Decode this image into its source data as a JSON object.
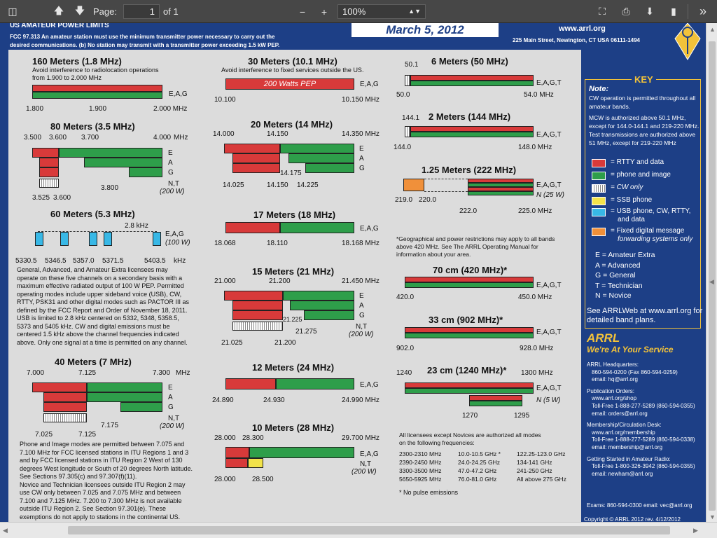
{
  "toolbar": {
    "page_label": "Page:",
    "page_value": "1",
    "page_total": "of 1",
    "zoom_value": "100%"
  },
  "header": {
    "title": "US AMATEUR POWER LIMITS",
    "fcc_line1": "FCC 97.313   An amateur station must use the minimum transmitter power necessary to carry out the",
    "fcc_line2": "desired communications.  (b)  No station may transmit with a transmitter power exceeding 1.5 kW PEP.",
    "date": "March 5, 2012",
    "site": "www.arrl.org",
    "address": "225 Main Street, Newington, CT  USA  06111-1494",
    "logo_text": "ARRL"
  },
  "bands": {
    "b160": {
      "title": "160 Meters (1.8 MHz)",
      "note1": "Avoid interference to radiolocation operations",
      "note2": "from 1.900 to 2.000 MHz",
      "lic": "E,A,G",
      "t1": "1.800",
      "t2": "1.900",
      "t3": "2.000 MHz"
    },
    "b80": {
      "title": "80 Meters (3.5 MHz)",
      "t1": "3.500",
      "t2": "3.600",
      "t3": "3.700",
      "t4": "4.000",
      "unit": "MHz",
      "e": "E",
      "a": "A",
      "g": "G",
      "nt": "N,T",
      "w200": "(200 W)",
      "b1": "3.525",
      "b2": "3.600",
      "b3": "3.800"
    },
    "b60": {
      "title": "60 Meters (5.3 MHz)",
      "khz": "2.8 kHz",
      "lic": "E,A,G",
      "w100": "(100 W)",
      "t1": "5330.5",
      "t2": "5346.5",
      "t3": "5357.0",
      "t4": "5371.5",
      "t5": "5403.5",
      "unit": "kHz"
    },
    "b60_text": [
      "General, Advanced, and Amateur Extra licensees may",
      "operate on these five channels on a secondary basis with a",
      "maximum effective radiated output of 100 W PEP. Permitted",
      "operating modes include upper sideband voice (USB), CW,",
      "RTTY, PSK31 and other digital modes such as PACTOR III as",
      "defined by the FCC Report and Order of November 18, 2011.",
      "USB is limited to 2.8 kHz centered on 5332, 5348, 5358.5,",
      "5373 and 5405 kHz. CW and digital emissions must be",
      "centered 1.5 kHz above the channel frequencies indicated",
      "above. Only one signal at a time is permitted on any channel."
    ],
    "b40": {
      "title": "40 Meters (7 MHz)",
      "t1": "7.000",
      "t2": "7.125",
      "t3": "7.300",
      "unit": "MHz",
      "e": "E",
      "a": "A",
      "g": "G",
      "nt": "N,T",
      "w200": "(200 W)",
      "b1": "7.025",
      "b2": "7.125",
      "b3": "7.175"
    },
    "b40_text": [
      "Phone and Image modes are permitted between 7.075 and",
      "7.100 MHz for FCC licensed stations in ITU Regions 1 and 3",
      "and by FCC licensed stations in ITU Region 2 West of 130",
      "degrees West longitude or South of 20 degrees North latitude.",
      "See Sections 97.305(c) and 97.307(f)(11).",
      "Novice and Technician licensees outside ITU Region 2 may",
      "use CW only between 7.025 and 7.075 MHz and between",
      "7.100 and 7.125 MHz. 7.200 to 7.300 MHz is not available",
      "outside ITU Region 2. See Section 97.301(e). These",
      "exemptions do not apply to stations in the continental US."
    ],
    "b30": {
      "title": "30 Meters (10.1 MHz)",
      "note": "Avoid interference to fixed services outside the US.",
      "pep": "200 Watts PEP",
      "lic": "E,A,G",
      "t1": "10.100",
      "t2": "10.150 MHz"
    },
    "b20": {
      "title": "20 Meters (14 MHz)",
      "t1": "14.000",
      "t2": "14.150",
      "t3": "14.350 MHz",
      "e": "E",
      "a": "A",
      "g": "G",
      "b1": "14.025",
      "b2": "14.150",
      "b3": "14.225",
      "m": "14.175"
    },
    "b17": {
      "title": "17 Meters (18 MHz)",
      "lic": "E,A,G",
      "t1": "18.068",
      "t2": "18.110",
      "t3": "18.168 MHz"
    },
    "b15": {
      "title": "15 Meters (21 MHz)",
      "t1": "21.000",
      "t2": "21.200",
      "t3": "21.450 MHz",
      "e": "E",
      "a": "A",
      "g": "G",
      "nt": "N,T",
      "w200": "(200 W)",
      "b1": "21.025",
      "b2": "21.200",
      "b3": "21.275",
      "m": "21.225"
    },
    "b12": {
      "title": "12 Meters (24 MHz)",
      "lic": "E,A,G",
      "t1": "24.890",
      "t2": "24.930",
      "t3": "24.990 MHz"
    },
    "b10": {
      "title": "10 Meters (28 MHz)",
      "t1": "28.000",
      "t2": "28.300",
      "t3": "29.700 MHz",
      "lic": "E,A,G",
      "nt": "N,T",
      "w200": "(200 W)",
      "b1": "28.000",
      "b2": "28.500"
    },
    "b6": {
      "title": "6 Meters (50 MHz)",
      "t0": "50.1",
      "lic": "E,A,G,T",
      "t1": "50.0",
      "t2": "54.0  MHz"
    },
    "b2": {
      "title": "2 Meters (144 MHz)",
      "t0": "144.1",
      "lic": "E,A,G,T",
      "t1": "144.0",
      "t2": "148.0  MHz"
    },
    "b125": {
      "title": "1.25 Meters (222 MHz)",
      "lic": "E,A,G,T",
      "n25": "N (25 W)",
      "t1": "219.0",
      "t2": "220.0",
      "t3": "222.0",
      "t4": "225.0  MHz"
    },
    "geo_note": [
      "*Geographical and power restrictions may apply to all bands",
      "above 420 MHz. See The ARRL Operating Manual for",
      "information about your area."
    ],
    "b70": {
      "title": "70 cm (420 MHz)*",
      "lic": "E,A,G,T",
      "t1": "420.0",
      "t2": "450.0  MHz"
    },
    "b33": {
      "title": "33 cm (902 MHz)*",
      "lic": "E,A,G,T",
      "t1": "902.0",
      "t2": "928.0  MHz"
    },
    "b23": {
      "title": "23 cm (1240 MHz)*",
      "t0": "1240",
      "t0b": "1300 MHz",
      "lic": "E,A,G,T",
      "n5": "N (5 W)",
      "t1": "1270",
      "t2": "1295"
    },
    "freq_intro": [
      "All licensees except Novices are authorized all modes",
      "on the following frequencies:"
    ],
    "freq_rows": [
      [
        "2300-2310 MHz",
        "10.0-10.5 GHz *",
        "122.25-123.0 GHz"
      ],
      [
        "2390-2450 MHz",
        "24.0-24.25 GHz",
        "134-141 GHz"
      ],
      [
        "3300-3500 MHz",
        "47.0-47.2 GHz",
        "241-250 GHz"
      ],
      [
        "5650-5925 MHz",
        "76.0-81.0 GHz",
        "All above 275 GHz"
      ]
    ],
    "no_pulse": "* No pulse emissions"
  },
  "key": {
    "title": "KEY",
    "note_h": "Note:",
    "note_lines": [
      "CW operation is permitted throughout all",
      "amateur bands.",
      "MCW is authorized above 50.1 MHz,",
      "except for 144.0-144.1 and 219-220 MHz.",
      "Test transmissions are authorized above",
      "51 MHz, except for 219-220 MHz"
    ],
    "items": [
      "= RTTY and data",
      "= phone and image",
      "= CW only",
      "= SSB phone",
      "= USB phone, CW, RTTY,",
      "and  data",
      "= Fixed digital message",
      "forwarding systems only"
    ],
    "lic_items": [
      "E = Amateur Extra",
      "A = Advanced",
      "G = General",
      "T = Technician",
      "N = Novice"
    ],
    "see1": "See ARRLWeb at www.arrl.org for",
    "see2": "detailed band plans."
  },
  "footer": {
    "arrl": "ARRL",
    "service": "We're At Your Service",
    "hq": [
      "ARRL Headquarters:",
      "860-594-0200  (Fax 860-594-0259)",
      "email: hq@arrl.org"
    ],
    "pub": [
      "Publication Orders:",
      "www.arrl.org/shop",
      "Toll-Free 1-888-277-5289 (860-594-0355)",
      "email: orders@arrl.org"
    ],
    "mem": [
      "Membership/Circulation Desk:",
      "www.arrl.org/membership",
      "Toll-Free 1-888-277-5289 (860-594-0338)",
      "email: membership@arrl.org"
    ],
    "start": [
      "Getting Started in Amateur Radio:",
      "Toll-Free 1-800-326-3942 (860-594-0355)",
      "email: newham@arrl.org"
    ],
    "exams": "Exams:  860-594-0300   email: vec@arrl.org",
    "copyright": "Copyright © ARRL 2012     rev. 4/12/2012"
  }
}
